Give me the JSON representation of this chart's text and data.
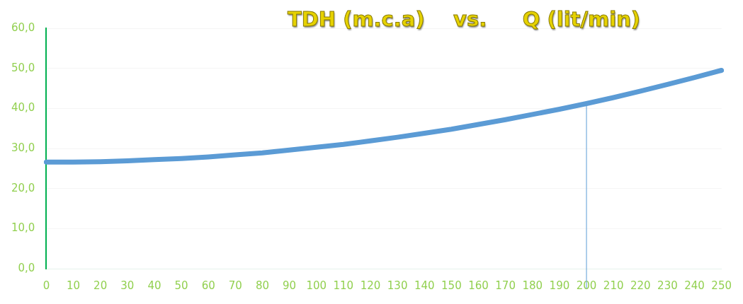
{
  "chart_data": {
    "type": "line",
    "title": "TDH (m.c.a)    vs.     Q (lit/min)",
    "categories": [
      "0",
      "10",
      "20",
      "30",
      "40",
      "50",
      "60",
      "70",
      "80",
      "90",
      "100",
      "110",
      "120",
      "130",
      "140",
      "150",
      "160",
      "170",
      "180",
      "190",
      "200",
      "210",
      "220",
      "230",
      "240",
      "250"
    ],
    "series": [
      {
        "color": "#5b9bd5",
        "values": [
          26.6,
          26.6,
          26.7,
          26.9,
          27.2,
          27.5,
          27.9,
          28.4,
          28.9,
          29.6,
          30.3,
          31.0,
          31.9,
          32.8,
          33.8,
          34.8,
          36.0,
          37.2,
          38.5,
          39.8,
          41.2,
          42.7,
          44.3,
          46.0,
          47.7,
          49.5
        ]
      }
    ],
    "ylim": [
      0,
      60
    ],
    "yticks": [
      {
        "value": 0,
        "label": "0,0"
      },
      {
        "value": 10,
        "label": "10,0"
      },
      {
        "value": 20,
        "label": "20,0"
      },
      {
        "value": 30,
        "label": "30,0"
      },
      {
        "value": 40,
        "label": "40,0"
      },
      {
        "value": 50,
        "label": "50,0"
      },
      {
        "value": 60,
        "label": "60,0"
      }
    ],
    "ref_lines": [
      {
        "axis": "x",
        "value": "200",
        "color": "#5b9bd5"
      }
    ],
    "grid": "y",
    "legend": false,
    "marker": "none",
    "line_style": "solid"
  }
}
